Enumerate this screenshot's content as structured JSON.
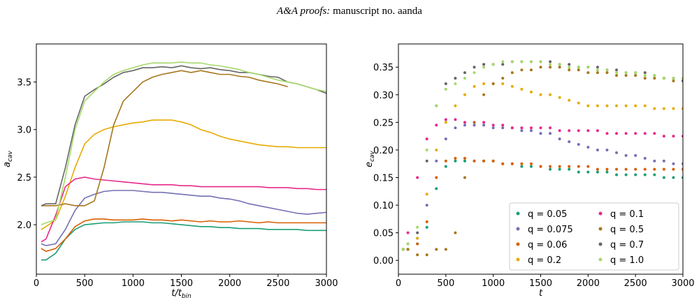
{
  "header": {
    "journal": "A&A proofs:",
    "manuscript": "manuscript no. aanda"
  },
  "chart_data": [
    {
      "type": "line",
      "xlabel": "t/t",
      "xlabel_sub": "bin",
      "ylabel": "a",
      "ylabel_sub": "cav",
      "x": [
        50,
        100,
        200,
        300,
        400,
        500,
        600,
        700,
        800,
        900,
        1000,
        1100,
        1200,
        1300,
        1400,
        1500,
        1600,
        1700,
        1800,
        1900,
        2000,
        2100,
        2200,
        2300,
        2400,
        2500,
        2600,
        2700,
        2800,
        2900,
        3000
      ],
      "xlim": [
        0,
        3000
      ],
      "xticks": [
        0,
        500,
        1000,
        1500,
        2000,
        2500,
        3000
      ],
      "ylim": [
        1.48,
        3.9
      ],
      "yticks": [
        {
          "value": 2.0,
          "label": "2.0"
        },
        {
          "value": 2.5,
          "label": "2.5"
        },
        {
          "value": 3.0,
          "label": "3.0"
        },
        {
          "value": 3.5,
          "label": "3.5"
        }
      ],
      "series": [
        {
          "color": "#1b9e77",
          "values": [
            1.63,
            1.63,
            1.7,
            1.85,
            1.95,
            2.0,
            2.01,
            2.02,
            2.02,
            2.03,
            2.03,
            2.03,
            2.02,
            2.02,
            2.01,
            2.0,
            1.99,
            1.98,
            1.98,
            1.97,
            1.97,
            1.96,
            1.96,
            1.96,
            1.95,
            1.95,
            1.95,
            1.95,
            1.94,
            1.94,
            1.94
          ]
        },
        {
          "color": "#7570b3",
          "values": [
            1.8,
            1.78,
            1.8,
            1.95,
            2.15,
            2.28,
            2.32,
            2.35,
            2.36,
            2.36,
            2.36,
            2.35,
            2.34,
            2.34,
            2.33,
            2.32,
            2.31,
            2.3,
            2.3,
            2.28,
            2.27,
            2.25,
            2.22,
            2.2,
            2.18,
            2.16,
            2.14,
            2.12,
            2.11,
            2.12,
            2.13
          ]
        },
        {
          "color": "#d95f02",
          "values": [
            1.75,
            1.72,
            1.75,
            1.85,
            1.98,
            2.04,
            2.06,
            2.06,
            2.05,
            2.05,
            2.05,
            2.06,
            2.05,
            2.05,
            2.04,
            2.05,
            2.04,
            2.03,
            2.04,
            2.03,
            2.03,
            2.04,
            2.03,
            2.02,
            2.03,
            2.02,
            2.02,
            2.02,
            2.02,
            2.02,
            2.02
          ]
        },
        {
          "color": "#e6ab02",
          "values": [
            1.95,
            1.98,
            2.05,
            2.3,
            2.6,
            2.85,
            2.95,
            3.0,
            3.03,
            3.05,
            3.07,
            3.08,
            3.1,
            3.1,
            3.1,
            3.08,
            3.05,
            3.0,
            2.97,
            2.93,
            2.9,
            2.88,
            2.86,
            2.84,
            2.83,
            2.82,
            2.82,
            2.81,
            2.81,
            2.81,
            2.81
          ]
        },
        {
          "color": "#e7298a",
          "values": [
            1.82,
            1.85,
            2.1,
            2.4,
            2.48,
            2.5,
            2.48,
            2.47,
            2.46,
            2.45,
            2.44,
            2.43,
            2.42,
            2.42,
            2.42,
            2.41,
            2.41,
            2.4,
            2.4,
            2.4,
            2.4,
            2.4,
            2.4,
            2.4,
            2.39,
            2.39,
            2.39,
            2.38,
            2.38,
            2.37,
            2.37
          ]
        },
        {
          "color": "#a6761d",
          "values": [
            2.2,
            2.2,
            2.2,
            2.22,
            2.2,
            2.2,
            2.25,
            2.6,
            3.05,
            3.3,
            3.4,
            3.5,
            3.55,
            3.58,
            3.6,
            3.62,
            3.6,
            3.62,
            3.6,
            3.58,
            3.58,
            3.56,
            3.55,
            3.52,
            3.5,
            3.48,
            3.45,
            null,
            null,
            null,
            null
          ]
        },
        {
          "color": "#666666",
          "values": [
            2.2,
            2.22,
            2.22,
            2.6,
            3.05,
            3.35,
            3.42,
            3.48,
            3.55,
            3.6,
            3.62,
            3.65,
            3.65,
            3.66,
            3.65,
            3.67,
            3.65,
            3.64,
            3.65,
            3.63,
            3.62,
            3.6,
            3.6,
            3.58,
            3.56,
            3.55,
            3.5,
            3.48,
            3.45,
            3.42,
            3.38
          ]
        },
        {
          "color": "#a6d96a",
          "values": [
            2.0,
            2.02,
            2.05,
            2.5,
            3.0,
            3.3,
            3.4,
            3.5,
            3.58,
            3.62,
            3.65,
            3.68,
            3.7,
            3.7,
            3.7,
            3.71,
            3.7,
            3.7,
            3.68,
            3.67,
            3.65,
            3.63,
            3.6,
            3.58,
            3.55,
            3.52,
            3.5,
            3.48,
            3.45,
            3.42,
            3.4
          ]
        }
      ]
    },
    {
      "type": "scatter",
      "xlabel": "t",
      "ylabel": "e",
      "ylabel_sub": "cav",
      "x": [
        50,
        100,
        200,
        300,
        400,
        500,
        600,
        700,
        800,
        900,
        1000,
        1100,
        1200,
        1300,
        1400,
        1500,
        1600,
        1700,
        1800,
        1900,
        2000,
        2100,
        2200,
        2300,
        2400,
        2500,
        2600,
        2700,
        2800,
        2900,
        3000
      ],
      "xlim": [
        0,
        3000
      ],
      "xticks": [
        0,
        500,
        1000,
        1500,
        2000,
        2500,
        3000
      ],
      "ylim": [
        -0.025,
        0.392
      ],
      "yticks": [
        {
          "value": 0,
          "label": "0.00"
        },
        {
          "value": 0.05,
          "label": "0.05"
        },
        {
          "value": 0.1,
          "label": "0.10"
        },
        {
          "value": 0.15,
          "label": "0.15"
        },
        {
          "value": 0.2,
          "label": "0.20"
        },
        {
          "value": 0.25,
          "label": "0.25"
        },
        {
          "value": 0.3,
          "label": "0.30"
        },
        {
          "value": 0.35,
          "label": "0.35"
        }
      ],
      "legend": "lower right",
      "legend_ncol": 2,
      "series": [
        {
          "name": "q = 0.05",
          "color": "#1b9e77",
          "values": [
            0.02,
            0.02,
            0.03,
            0.06,
            0.13,
            0.17,
            0.18,
            0.18,
            0.18,
            0.18,
            0.18,
            0.175,
            0.175,
            0.17,
            0.17,
            0.17,
            0.165,
            0.165,
            0.165,
            0.16,
            0.16,
            0.16,
            0.16,
            0.155,
            0.155,
            0.155,
            0.155,
            0.155,
            0.15,
            0.15,
            0.15
          ]
        },
        {
          "name": "q = 0.075",
          "color": "#7570b3",
          "values": [
            0.02,
            0.02,
            0.04,
            0.1,
            0.18,
            0.22,
            0.24,
            0.245,
            0.245,
            0.245,
            0.24,
            0.24,
            0.24,
            0.235,
            0.235,
            0.23,
            0.23,
            0.22,
            0.215,
            0.21,
            0.205,
            0.2,
            0.2,
            0.195,
            0.19,
            0.19,
            0.185,
            0.18,
            0.18,
            0.175,
            0.175
          ]
        },
        {
          "name": "q = 0.06",
          "color": "#d95f02",
          "values": [
            0.02,
            0.02,
            0.03,
            0.07,
            0.15,
            0.18,
            0.185,
            0.185,
            0.18,
            0.18,
            0.18,
            0.175,
            0.175,
            0.175,
            0.175,
            0.17,
            0.17,
            0.17,
            0.17,
            0.17,
            0.17,
            0.165,
            0.165,
            0.165,
            0.165,
            0.165,
            0.165,
            0.165,
            0.165,
            0.165,
            0.165
          ]
        },
        {
          "name": "q = 0.2",
          "color": "#e6ab02",
          "values": [
            0.02,
            0.02,
            0.04,
            0.12,
            0.2,
            0.25,
            0.28,
            0.3,
            0.315,
            0.32,
            0.32,
            0.32,
            0.315,
            0.31,
            0.305,
            0.3,
            0.3,
            0.295,
            0.29,
            0.285,
            0.28,
            0.28,
            0.28,
            0.28,
            0.28,
            0.28,
            0.28,
            0.275,
            0.275,
            0.275,
            0.275
          ]
        },
        {
          "name": "q = 0.1",
          "color": "#e7298a",
          "values": [
            0.02,
            0.05,
            0.15,
            0.22,
            0.245,
            0.255,
            0.255,
            0.25,
            0.25,
            0.25,
            0.245,
            0.245,
            0.24,
            0.24,
            0.24,
            0.24,
            0.24,
            0.235,
            0.235,
            0.235,
            0.235,
            0.235,
            0.23,
            0.23,
            0.23,
            0.23,
            0.23,
            0.23,
            0.225,
            0.225,
            0.225
          ]
        },
        {
          "name": "q = 0.5",
          "color": "#a6761d",
          "values": [
            0.02,
            0.02,
            0.01,
            0.01,
            0.02,
            0.02,
            0.05,
            0.15,
            0.25,
            0.3,
            0.32,
            0.33,
            0.34,
            0.345,
            0.345,
            0.35,
            0.35,
            0.35,
            0.345,
            0.345,
            0.34,
            0.34,
            0.34,
            0.335,
            0.335,
            0.335,
            0.33,
            0.33,
            0.33,
            0.325,
            0.325
          ]
        },
        {
          "name": "q = 0.7",
          "color": "#666666",
          "values": [
            0.02,
            0.03,
            0.05,
            0.18,
            0.28,
            0.32,
            0.33,
            0.34,
            0.35,
            0.355,
            0.355,
            0.355,
            0.36,
            0.36,
            0.36,
            0.36,
            0.36,
            0.355,
            0.355,
            0.35,
            0.35,
            0.35,
            0.345,
            0.345,
            0.34,
            0.34,
            0.34,
            0.335,
            0.33,
            0.33,
            0.325
          ]
        },
        {
          "name": "q = 1.0",
          "color": "#a6d96a",
          "values": [
            0.02,
            0.03,
            0.06,
            0.2,
            0.28,
            0.31,
            0.32,
            0.33,
            0.34,
            0.35,
            0.355,
            0.36,
            0.36,
            0.36,
            0.36,
            0.36,
            0.355,
            0.355,
            0.35,
            0.35,
            0.35,
            0.345,
            0.345,
            0.34,
            0.34,
            0.34,
            0.335,
            0.335,
            0.33,
            0.33,
            0.33
          ]
        }
      ]
    }
  ]
}
